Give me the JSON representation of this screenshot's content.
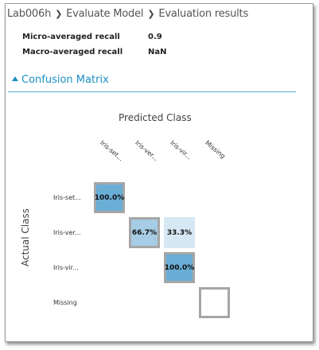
{
  "breadcrumb": {
    "items": [
      "Lab006h",
      "Evaluate Model",
      "Evaluation results"
    ]
  },
  "metrics": [
    {
      "label": "Micro-averaged recall",
      "value": "0.9"
    },
    {
      "label": "Macro-averaged recall",
      "value": "NaN"
    }
  ],
  "section": {
    "title": "Confusion Matrix"
  },
  "colors": {
    "accent": "#1a8fc4",
    "cell_high": "#6aaed6",
    "cell_mid": "#a7cde6",
    "cell_low": "#d6e8f4",
    "diag_border": "#a6a6a6"
  },
  "chart_data": {
    "type": "heatmap",
    "title": "Predicted Class",
    "ylabel": "Actual Class",
    "columns": [
      "Iris-set...",
      "Iris-ver...",
      "Iris-vir...",
      "Missing"
    ],
    "rows": [
      "Iris-set...",
      "Iris-ver...",
      "Iris-vir...",
      "Missing"
    ],
    "cells": [
      [
        "100.0%",
        "",
        "",
        ""
      ],
      [
        "",
        "66.7%",
        "33.3%",
        ""
      ],
      [
        "",
        "",
        "100.0%",
        ""
      ],
      [
        "",
        "",
        "",
        ""
      ]
    ],
    "values": [
      [
        100.0,
        null,
        null,
        null
      ],
      [
        null,
        66.7,
        33.3,
        null
      ],
      [
        null,
        null,
        100.0,
        null
      ],
      [
        null,
        null,
        null,
        null
      ]
    ]
  }
}
